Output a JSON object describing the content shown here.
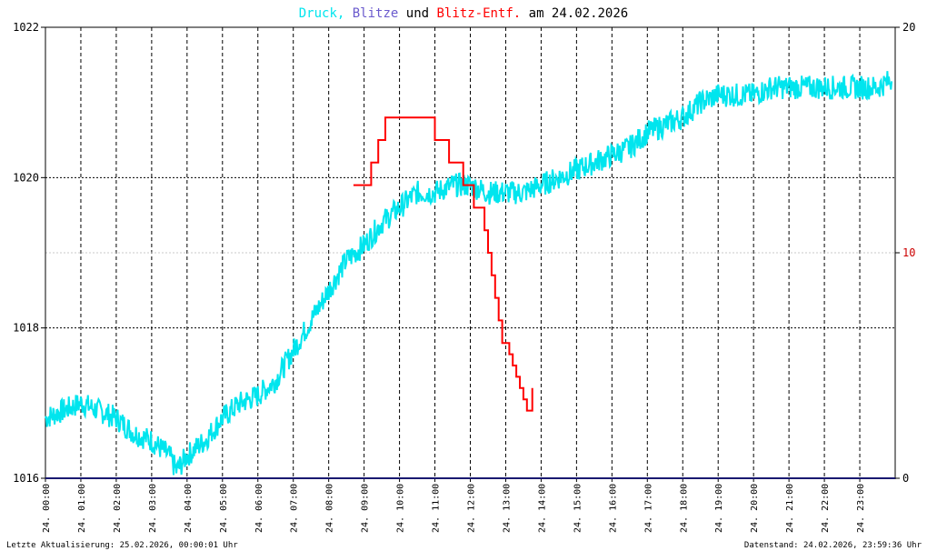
{
  "title_parts": [
    {
      "text": "Druck,",
      "color": "#00e5ee"
    },
    {
      "text": "Blitze",
      "color": "#6a5acd"
    },
    {
      "text": "und",
      "color": "#000000"
    },
    {
      "text": "Blitz-Entf.",
      "color": "#ff0000"
    },
    {
      "text": "am 24.02.2026",
      "color": "#000000"
    }
  ],
  "footer": {
    "left": "Letzte Aktualisierung: 25.02.2026, 00:00:01 Uhr",
    "right": "Datenstand: 24.02.2026, 23:59:36 Uhr"
  },
  "chart_data": {
    "type": "line",
    "title": "Druck, Blitze und Blitz-Entf. am 24.02.2026",
    "x_ticks": [
      "24. 00:00",
      "24. 01:00",
      "24. 02:00",
      "24. 03:00",
      "24. 04:00",
      "24. 05:00",
      "24. 06:00",
      "24. 07:00",
      "24. 08:00",
      "24. 09:00",
      "24. 10:00",
      "24. 11:00",
      "24. 12:00",
      "24. 13:00",
      "24. 14:00",
      "24. 15:00",
      "24. 16:00",
      "24. 17:00",
      "24. 18:00",
      "24. 19:00",
      "24. 20:00",
      "24. 21:00",
      "24. 22:00",
      "24. 23:00"
    ],
    "x_range_hours": [
      0,
      24
    ],
    "y_left": {
      "range": [
        1016,
        1022
      ],
      "ticks": [
        "1016",
        "1018",
        "1020",
        "1022"
      ],
      "color": "#000000"
    },
    "y_right": {
      "range": [
        0,
        20
      ],
      "ticks": [
        "0",
        "10",
        "20"
      ],
      "red_tick": "10",
      "color": "#000000",
      "red_color": "#cc0000"
    },
    "grid": true,
    "series": [
      {
        "name": "Druck",
        "axis": "left",
        "color": "#00e5ee",
        "x_hours": [
          0.0,
          0.5,
          1.0,
          1.5,
          2.0,
          2.5,
          3.0,
          3.5,
          3.7,
          4.0,
          4.5,
          5.0,
          5.5,
          6.0,
          6.5,
          7.0,
          7.5,
          8.0,
          8.5,
          9.0,
          9.5,
          10.0,
          10.5,
          11.0,
          11.5,
          12.0,
          12.5,
          13.0,
          13.5,
          14.0,
          14.5,
          15.0,
          15.5,
          16.0,
          16.5,
          17.0,
          17.5,
          18.0,
          18.5,
          19.0,
          19.5,
          20.0,
          20.5,
          21.0,
          21.5,
          22.0,
          22.5,
          23.0,
          23.5,
          23.9
        ],
        "values": [
          1016.8,
          1016.9,
          1017.0,
          1016.9,
          1016.8,
          1016.6,
          1016.5,
          1016.3,
          1016.1,
          1016.3,
          1016.5,
          1016.8,
          1017.0,
          1017.1,
          1017.3,
          1017.7,
          1018.1,
          1018.5,
          1018.9,
          1019.1,
          1019.4,
          1019.6,
          1019.8,
          1019.8,
          1019.9,
          1019.9,
          1019.8,
          1019.8,
          1019.8,
          1019.9,
          1020.0,
          1020.1,
          1020.2,
          1020.3,
          1020.4,
          1020.6,
          1020.7,
          1020.8,
          1021.0,
          1021.1,
          1021.1,
          1021.1,
          1021.2,
          1021.2,
          1021.2,
          1021.2,
          1021.2,
          1021.2,
          1021.2,
          1021.3
        ]
      },
      {
        "name": "Blitze",
        "axis": "right",
        "color": "#6a5acd",
        "x_hours": [
          0,
          24
        ],
        "values": [
          0,
          0
        ]
      },
      {
        "name": "Blitz-Entf.",
        "axis": "right",
        "color": "#ff0000",
        "x_hours": [
          8.7,
          9.0,
          9.2,
          9.4,
          9.6,
          10.0,
          10.5,
          11.0,
          11.4,
          11.8,
          12.1,
          12.3,
          12.4,
          12.5,
          12.6,
          12.7,
          12.8,
          12.9,
          13.0,
          13.1,
          13.2,
          13.3,
          13.4,
          13.5,
          13.6,
          13.7,
          13.75
        ],
        "values": [
          13.0,
          13.0,
          14.0,
          15.0,
          16.0,
          16.0,
          16.0,
          15.0,
          14.0,
          13.0,
          12.0,
          12.0,
          11.0,
          10.0,
          9.0,
          8.0,
          7.0,
          6.0,
          6.0,
          5.5,
          5.0,
          4.5,
          4.0,
          3.5,
          3.0,
          3.0,
          4.0
        ]
      }
    ]
  }
}
